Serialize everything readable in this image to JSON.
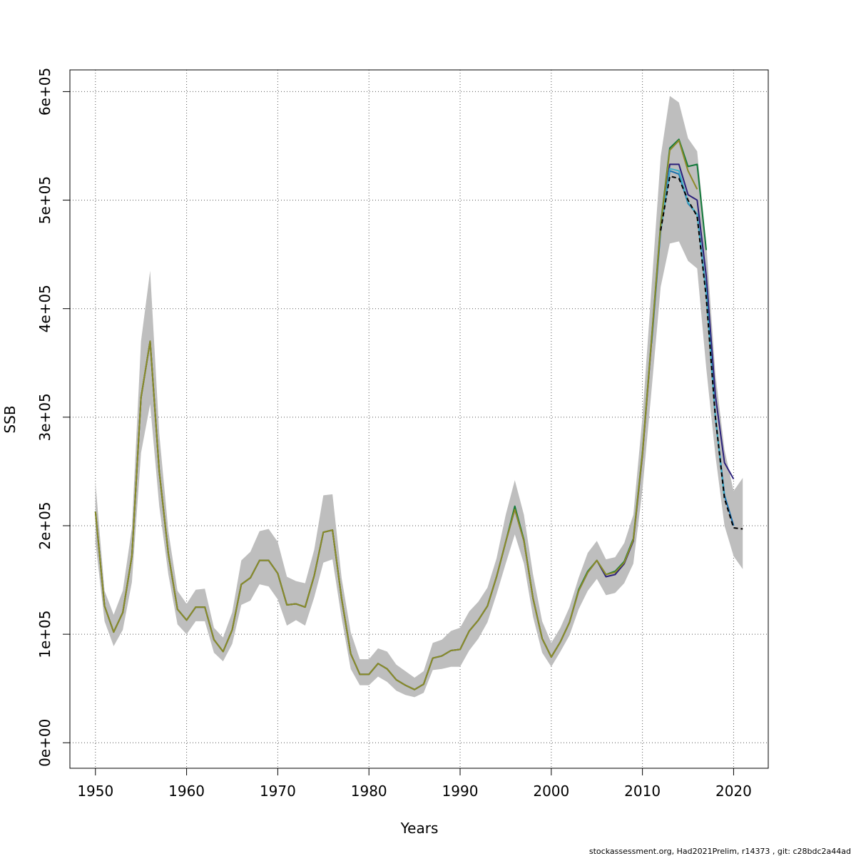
{
  "chart_data": {
    "type": "line",
    "xlabel": "Years",
    "ylabel": "SSB",
    "xlim": [
      1947.2,
      2023.8
    ],
    "ylim": [
      -23500,
      620000
    ],
    "x_ticks": [
      1950,
      1960,
      1970,
      1980,
      1990,
      2000,
      2010,
      2020
    ],
    "y_ticks": [
      0,
      100000,
      200000,
      300000,
      400000,
      500000,
      600000
    ],
    "x_tick_labels": [
      "1950",
      "1960",
      "1970",
      "1980",
      "1990",
      "2000",
      "2010",
      "2020"
    ],
    "y_tick_labels": [
      "0e+00",
      "1e+05",
      "2e+05",
      "3e+05",
      "4e+05",
      "5e+05",
      "6e+05"
    ],
    "grid": true,
    "grid_style": "dotted",
    "confidence_band": {
      "color": "#bebebe",
      "x": [
        1950,
        1951,
        1952,
        1953,
        1954,
        1955,
        1956,
        1957,
        1958,
        1959,
        1960,
        1961,
        1962,
        1963,
        1964,
        1965,
        1966,
        1967,
        1968,
        1969,
        1970,
        1971,
        1972,
        1973,
        1974,
        1975,
        1976,
        1977,
        1978,
        1979,
        1980,
        1981,
        1982,
        1983,
        1984,
        1985,
        1986,
        1987,
        1988,
        1989,
        1990,
        1991,
        1992,
        1993,
        1994,
        1995,
        1996,
        1997,
        1998,
        1999,
        2000,
        2001,
        2002,
        2003,
        2004,
        2005,
        2006,
        2007,
        2008,
        2009,
        2010,
        2011,
        2012,
        2013,
        2014,
        2015,
        2016,
        2017,
        2018,
        2019,
        2020,
        2021
      ],
      "upper": [
        240000,
        140000,
        118000,
        140000,
        198000,
        370000,
        435000,
        285000,
        195000,
        140000,
        128000,
        141000,
        142000,
        106000,
        97000,
        120000,
        168000,
        176000,
        195000,
        197000,
        185000,
        153000,
        149000,
        147000,
        178000,
        228000,
        229000,
        152000,
        102000,
        77000,
        77000,
        87000,
        84000,
        72000,
        66000,
        60000,
        66000,
        92000,
        95000,
        103000,
        106000,
        121000,
        130000,
        143000,
        170000,
        210000,
        242000,
        210000,
        155000,
        112000,
        92000,
        106000,
        125000,
        152000,
        175000,
        186000,
        169000,
        171000,
        184000,
        210000,
        300000,
        420000,
        540000,
        596000,
        590000,
        557000,
        545000,
        460000,
        340000,
        270000,
        232000,
        244000
      ],
      "lower": [
        185000,
        112000,
        89000,
        104000,
        148000,
        267000,
        312000,
        218000,
        155000,
        109000,
        100000,
        112000,
        112000,
        83000,
        75000,
        91000,
        127000,
        131000,
        146000,
        144000,
        132000,
        108000,
        113000,
        108000,
        134000,
        166000,
        169000,
        115000,
        68000,
        53000,
        53000,
        61000,
        56000,
        48000,
        44000,
        42000,
        46000,
        67000,
        68000,
        70000,
        70000,
        85000,
        96000,
        111000,
        137000,
        165000,
        192000,
        165000,
        116000,
        83000,
        70000,
        84000,
        99000,
        123000,
        140000,
        151000,
        136000,
        138000,
        147000,
        165000,
        233000,
        325000,
        420000,
        460000,
        462000,
        444000,
        437000,
        345000,
        265000,
        200000,
        172000,
        160000
      ]
    },
    "series": [
      {
        "color": "#2a1f7a",
        "x": [
          1950,
          1951,
          1952,
          1953,
          1954,
          1955,
          1956,
          1957,
          1958,
          1959,
          1960,
          1961,
          1962,
          1963,
          1964,
          1965,
          1966,
          1967,
          1968,
          1969,
          1970,
          1971,
          1972,
          1973,
          1974,
          1975,
          1976,
          1977,
          1978,
          1979,
          1980,
          1981,
          1982,
          1983,
          1984,
          1985,
          1986,
          1987,
          1988,
          1989,
          1990,
          1991,
          1992,
          1993,
          1994,
          1995,
          1996,
          1997,
          1998,
          1999,
          2000,
          2001,
          2002,
          2003,
          2004,
          2005,
          2006,
          2007,
          2008,
          2009,
          2010,
          2011,
          2012,
          2013,
          2014,
          2015,
          2016,
          2017,
          2018,
          2019,
          2020
        ],
        "values": [
          213000,
          126000,
          102000,
          120000,
          172000,
          318000,
          370000,
          250000,
          174000,
          123000,
          113000,
          125000,
          125000,
          95000,
          84000,
          104000,
          146000,
          152000,
          168000,
          168000,
          156000,
          127000,
          128000,
          125000,
          154000,
          194000,
          196000,
          133000,
          82000,
          63000,
          63000,
          73000,
          68000,
          58000,
          53000,
          49000,
          54000,
          78000,
          80000,
          85000,
          86000,
          103000,
          113000,
          126000,
          153000,
          185000,
          215000,
          186000,
          133000,
          96000,
          79000,
          93000,
          111000,
          140000,
          157000,
          168000,
          153000,
          155000,
          165000,
          186000,
          265000,
          370000,
          475000,
          533000,
          533000,
          505000,
          500000,
          430000,
          320000,
          258000,
          243000
        ]
      },
      {
        "color": "#1a6fae",
        "x": [
          2011,
          2012,
          2013,
          2014,
          2015,
          2016,
          2017,
          2018,
          2019,
          2020
        ],
        "values": [
          368000,
          472000,
          527000,
          524000,
          497000,
          487000,
          415000,
          300000,
          228000,
          200000
        ]
      },
      {
        "color": "#3fb0c8",
        "x": [
          2012,
          2013,
          2014,
          2015,
          2016,
          2017,
          2018,
          2019
        ],
        "values": [
          472000,
          529000,
          527000,
          498000,
          487000,
          415000,
          300000,
          225000
        ]
      },
      {
        "color": "#127a3a",
        "x": [
          1950,
          1951,
          1952,
          1953,
          1954,
          1955,
          1956,
          1957,
          1958,
          1959,
          1960,
          1961,
          1962,
          1963,
          1964,
          1965,
          1966,
          1967,
          1968,
          1969,
          1970,
          1971,
          1972,
          1973,
          1974,
          1975,
          1976,
          1977,
          1978,
          1979,
          1980,
          1981,
          1982,
          1983,
          1984,
          1985,
          1986,
          1987,
          1988,
          1989,
          1990,
          1991,
          1992,
          1993,
          1994,
          1995,
          1996,
          1997,
          1998,
          1999,
          2000,
          2001,
          2002,
          2003,
          2004,
          2005,
          2006,
          2007,
          2008,
          2009,
          2010,
          2011,
          2012,
          2013,
          2014,
          2015,
          2016,
          2017
        ],
        "values": [
          213000,
          126000,
          102000,
          120000,
          172000,
          318000,
          370000,
          250000,
          174000,
          123000,
          113000,
          125000,
          125000,
          95000,
          84000,
          104000,
          146000,
          152000,
          168000,
          168000,
          156000,
          127000,
          128000,
          125000,
          154000,
          194000,
          196000,
          133000,
          82000,
          63000,
          63000,
          73000,
          68000,
          58000,
          53000,
          49000,
          54000,
          78000,
          80000,
          85000,
          86000,
          103000,
          113000,
          126000,
          153000,
          185000,
          218000,
          187000,
          133000,
          96000,
          79000,
          93000,
          111000,
          141000,
          158000,
          168000,
          155000,
          158000,
          167000,
          188000,
          267000,
          372000,
          478000,
          548000,
          556000,
          531000,
          533000,
          454000
        ]
      },
      {
        "color": "#8c8a28",
        "x": [
          1950,
          1951,
          1952,
          1953,
          1954,
          1955,
          1956,
          1957,
          1958,
          1959,
          1960,
          1961,
          1962,
          1963,
          1964,
          1965,
          1966,
          1967,
          1968,
          1969,
          1970,
          1971,
          1972,
          1973,
          1974,
          1975,
          1976,
          1977,
          1978,
          1979,
          1980,
          1981,
          1982,
          1983,
          1984,
          1985,
          1986,
          1987,
          1988,
          1989,
          1990,
          1991,
          1992,
          1993,
          1994,
          1995,
          1996,
          1997,
          1998,
          1999,
          2000,
          2001,
          2002,
          2003,
          2004,
          2005,
          2006,
          2007,
          2008,
          2009,
          2010,
          2011,
          2012,
          2013,
          2014,
          2015,
          2016
        ],
        "values": [
          213000,
          126000,
          102000,
          120000,
          172000,
          318000,
          370000,
          250000,
          174000,
          123000,
          113000,
          125000,
          125000,
          95000,
          84000,
          104000,
          146000,
          152000,
          168000,
          168000,
          156000,
          127000,
          128000,
          125000,
          154000,
          194000,
          196000,
          133000,
          82000,
          63000,
          63000,
          73000,
          68000,
          58000,
          53000,
          49000,
          54000,
          78000,
          80000,
          85000,
          86000,
          103000,
          113000,
          126000,
          153000,
          185000,
          215000,
          186000,
          133000,
          96000,
          79000,
          93000,
          111000,
          140000,
          157000,
          168000,
          155000,
          157000,
          166000,
          187000,
          266000,
          371000,
          476000,
          546000,
          555000,
          527000,
          510000
        ]
      },
      {
        "color": "#000000",
        "dashed": true,
        "x": [
          2012,
          2013,
          2014,
          2015,
          2016,
          2017,
          2018,
          2019,
          2020,
          2021
        ],
        "values": [
          472000,
          522000,
          520000,
          500000,
          485000,
          410000,
          300000,
          225000,
          198000,
          197000
        ]
      }
    ]
  },
  "footer": {
    "credit": "stockassessment.org, Had2021Prelim, r14373 , git: c28bdc2a44ad"
  }
}
